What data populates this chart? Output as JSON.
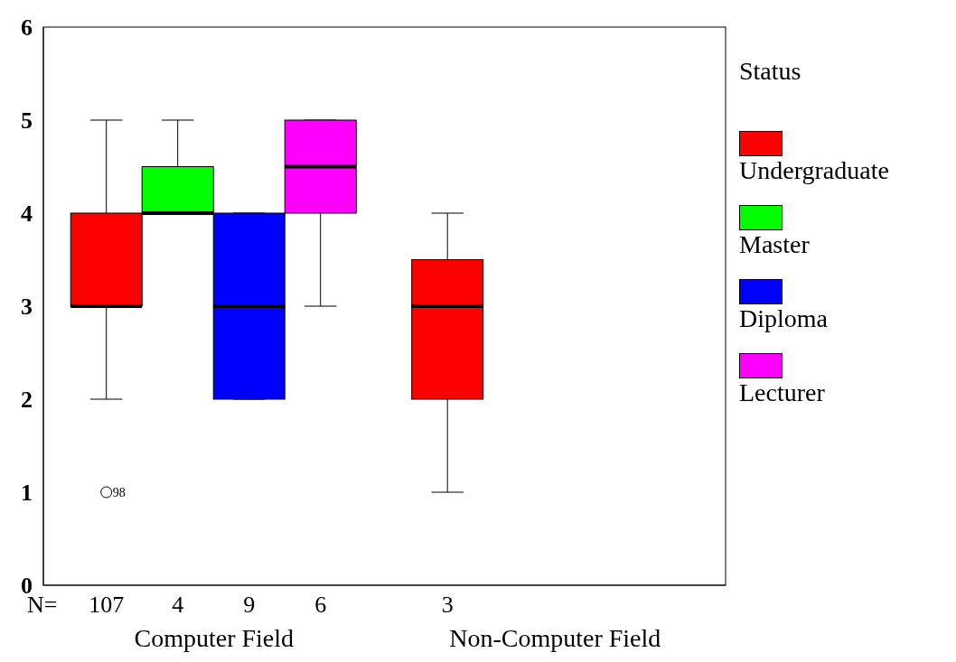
{
  "chart_data": {
    "type": "box",
    "categories": [
      "Computer Field",
      "Non-Computer Field"
    ],
    "legend_title": "Status",
    "legend": "right",
    "grid": false,
    "ylim": [
      0,
      6
    ],
    "yticks": [
      0,
      1,
      2,
      3,
      4,
      5,
      6
    ],
    "series": [
      {
        "name": "Undergraduate",
        "color": "#ff0000",
        "boxes": [
          {
            "low": 2,
            "q1": 3,
            "median": 3,
            "q3": 4,
            "high": 5,
            "outliers": [
              1
            ]
          },
          {
            "low": 1,
            "q1": 2,
            "median": 3,
            "q3": 3.5,
            "high": 4
          }
        ]
      },
      {
        "name": "Master",
        "color": "#00ff00",
        "boxes": [
          {
            "low": 4,
            "q1": 4,
            "median": 4,
            "q3": 4.5,
            "high": 5
          },
          null
        ]
      },
      {
        "name": "Diploma",
        "color": "#0000ff",
        "boxes": [
          {
            "low": 2,
            "q1": 2,
            "median": 3,
            "q3": 4,
            "high": 4
          },
          null
        ]
      },
      {
        "name": "Lecturer",
        "color": "#ff00ff",
        "boxes": [
          {
            "low": 3,
            "q1": 4,
            "median": 4.5,
            "q3": 5,
            "high": 5
          },
          null
        ]
      }
    ],
    "annotations": [
      "N=",
      "107",
      "4",
      "9",
      "6",
      "3",
      "98"
    ]
  }
}
